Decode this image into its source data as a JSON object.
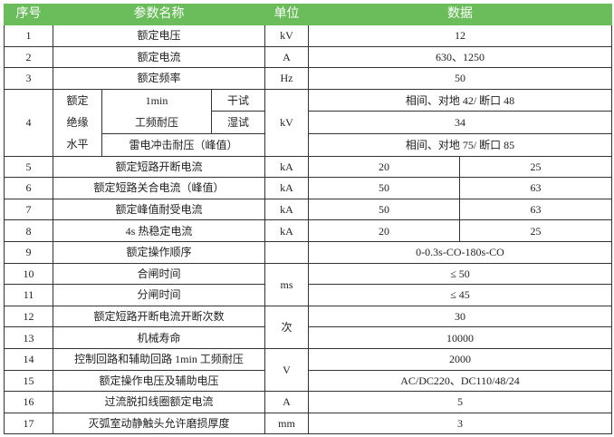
{
  "header": {
    "no": "序号",
    "name": "参数名称",
    "unit": "单位",
    "data": "数据"
  },
  "rows": [
    {
      "no": "1",
      "name": "额定电压",
      "unit": "kV",
      "value": "12"
    },
    {
      "no": "2",
      "name": "额定电流",
      "unit": "A",
      "value": "630、1250"
    },
    {
      "no": "3",
      "name": "额定频率",
      "unit": "Hz",
      "value": "50"
    }
  ],
  "insulation": {
    "no": "4",
    "group": "额定绝缘水平",
    "group_lines": [
      "额定",
      "绝缘",
      "水平"
    ],
    "pf_line1": "1min",
    "pf_line2": "工频耐压",
    "dry": "干试",
    "wet": "湿试",
    "lightning": "雷电冲击耐压（峰值）",
    "unit": "kV",
    "dry_value": "相间、对地 42/ 断口 48",
    "wet_value": "34",
    "lightning_value": "相间、对地 75/ 断口 85"
  },
  "split_rows": [
    {
      "no": "5",
      "name": "额定短路开断电流",
      "unit": "kA",
      "v1": "20",
      "v2": "25"
    },
    {
      "no": "6",
      "name": "额定短路关合电流（峰值）",
      "unit": "kA",
      "v1": "50",
      "v2": "63"
    },
    {
      "no": "7",
      "name": "额定峰值耐受电流",
      "unit": "kA",
      "v1": "50",
      "v2": "63"
    },
    {
      "no": "8",
      "name": "4s 热稳定电流",
      "unit": "kA",
      "v1": "20",
      "v2": "25"
    }
  ],
  "rows2": [
    {
      "no": "9",
      "name": "额定操作顺序",
      "unit": "",
      "value": "0-0.3s-CO-180s-CO"
    },
    {
      "no": "10",
      "name": "合闸时间",
      "unit": "ms",
      "value": "≤ 50"
    },
    {
      "no": "11",
      "name": "分闸时间",
      "value": "≤ 45"
    },
    {
      "no": "12",
      "name": "额定短路开断电流开断次数",
      "unit": "次",
      "value": "30"
    },
    {
      "no": "13",
      "name": "机械寿命",
      "value": "10000"
    },
    {
      "no": "14",
      "name": "控制回路和辅助回路 1min 工频耐压",
      "unit": "V",
      "value": "2000"
    },
    {
      "no": "15",
      "name": "额定操作电压及辅助电压",
      "value": "AC/DC220、DC110/48/24"
    },
    {
      "no": "16",
      "name": "过流脱扣线圈额定电流",
      "unit": "A",
      "value": "5"
    },
    {
      "no": "17",
      "name": "灭弧室动静触头允许磨损厚度",
      "unit": "mm",
      "value": "3"
    }
  ],
  "colors": {
    "header_bg": "#6bbd5b",
    "header_text": "#ffffff",
    "border": "#333333"
  }
}
